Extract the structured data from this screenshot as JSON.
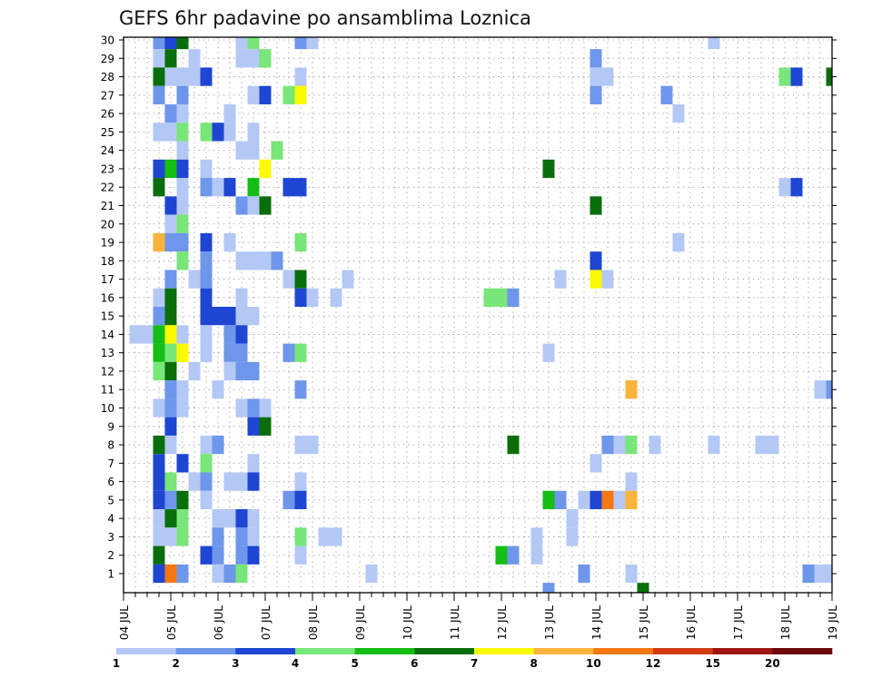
{
  "chart_data": {
    "type": "heatmap",
    "title": "GEFS 6hr padavine po ansamblima Loznica",
    "x_tick_labels": [
      "04 JUL",
      "05 JUL",
      "06 JUL",
      "07 JUL",
      "08 JUL",
      "09 JUL",
      "10 JUL",
      "11 JUL",
      "12 JUL",
      "13 JUL",
      "14 JUL",
      "15 JUL",
      "16 JUL",
      "17 JUL",
      "18 JUL",
      "19 JUL"
    ],
    "y_tick_labels": [
      "1",
      "2",
      "3",
      "4",
      "5",
      "6",
      "7",
      "8",
      "9",
      "10",
      "11",
      "12",
      "13",
      "14",
      "15",
      "16",
      "17",
      "18",
      "19",
      "20",
      "21",
      "22",
      "23",
      "24",
      "25",
      "26",
      "27",
      "28",
      "29",
      "30"
    ],
    "x_range_steps_6h": [
      0,
      60
    ],
    "y_range_members": [
      1,
      30
    ],
    "grid": "dotted",
    "colorbar": {
      "placement": "bottom",
      "tick_labels": [
        "1",
        "2",
        "3",
        "4",
        "5",
        "6",
        "7",
        "8",
        "10",
        "12",
        "15",
        "20"
      ],
      "colors": [
        "#b4c8f5",
        "#6e96eb",
        "#1e46d2",
        "#78e678",
        "#14be14",
        "#0a6e0a",
        "#fafa00",
        "#fab43c",
        "#f57814",
        "#d23c14",
        "#a01414",
        "#6e0a0a"
      ]
    },
    "cells_note_format": "[member, step(6h steps from 04 JUL 00z), class(1..12 per colorbar)]",
    "cells": [
      [
        30,
        3,
        2
      ],
      [
        30,
        4,
        3
      ],
      [
        30,
        5,
        6
      ],
      [
        30,
        10,
        1
      ],
      [
        30,
        11,
        4
      ],
      [
        30,
        15,
        2
      ],
      [
        30,
        16,
        1
      ],
      [
        30,
        50,
        1
      ],
      [
        29,
        3,
        1
      ],
      [
        29,
        4,
        6
      ],
      [
        29,
        6,
        1
      ],
      [
        29,
        10,
        1
      ],
      [
        29,
        11,
        1
      ],
      [
        29,
        12,
        4
      ],
      [
        29,
        40,
        2
      ],
      [
        28,
        3,
        6
      ],
      [
        28,
        4,
        1
      ],
      [
        28,
        5,
        1
      ],
      [
        28,
        6,
        1
      ],
      [
        28,
        7,
        3
      ],
      [
        28,
        15,
        1
      ],
      [
        28,
        40,
        1
      ],
      [
        28,
        41,
        1
      ],
      [
        28,
        56,
        4
      ],
      [
        28,
        57,
        3
      ],
      [
        28,
        60,
        6
      ],
      [
        27,
        3,
        2
      ],
      [
        27,
        5,
        2
      ],
      [
        27,
        11,
        1
      ],
      [
        27,
        12,
        3
      ],
      [
        27,
        14,
        4
      ],
      [
        27,
        15,
        7
      ],
      [
        27,
        40,
        2
      ],
      [
        27,
        46,
        2
      ],
      [
        26,
        4,
        2
      ],
      [
        26,
        5,
        1
      ],
      [
        26,
        9,
        1
      ],
      [
        26,
        47,
        1
      ],
      [
        25,
        3,
        1
      ],
      [
        25,
        4,
        1
      ],
      [
        25,
        5,
        4
      ],
      [
        25,
        7,
        4
      ],
      [
        25,
        8,
        3
      ],
      [
        25,
        9,
        1
      ],
      [
        25,
        11,
        1
      ],
      [
        24,
        5,
        1
      ],
      [
        24,
        10,
        1
      ],
      [
        24,
        11,
        1
      ],
      [
        24,
        13,
        4
      ],
      [
        23,
        3,
        3
      ],
      [
        23,
        4,
        5
      ],
      [
        23,
        5,
        3
      ],
      [
        23,
        7,
        1
      ],
      [
        23,
        12,
        7
      ],
      [
        23,
        36,
        6
      ],
      [
        22,
        3,
        6
      ],
      [
        22,
        5,
        1
      ],
      [
        22,
        7,
        2
      ],
      [
        22,
        8,
        1
      ],
      [
        22,
        9,
        3
      ],
      [
        22,
        11,
        5
      ],
      [
        22,
        14,
        3
      ],
      [
        22,
        15,
        3
      ],
      [
        22,
        56,
        1
      ],
      [
        22,
        57,
        3
      ],
      [
        21,
        4,
        3
      ],
      [
        21,
        5,
        1
      ],
      [
        21,
        10,
        2
      ],
      [
        21,
        11,
        1
      ],
      [
        21,
        12,
        6
      ],
      [
        21,
        40,
        6
      ],
      [
        20,
        4,
        1
      ],
      [
        20,
        5,
        4
      ],
      [
        19,
        3,
        8
      ],
      [
        19,
        4,
        2
      ],
      [
        19,
        5,
        2
      ],
      [
        19,
        7,
        3
      ],
      [
        19,
        9,
        1
      ],
      [
        19,
        15,
        4
      ],
      [
        19,
        47,
        1
      ],
      [
        18,
        5,
        4
      ],
      [
        18,
        7,
        2
      ],
      [
        18,
        10,
        1
      ],
      [
        18,
        11,
        1
      ],
      [
        18,
        12,
        1
      ],
      [
        18,
        13,
        2
      ],
      [
        18,
        40,
        3
      ],
      [
        17,
        4,
        2
      ],
      [
        17,
        6,
        1
      ],
      [
        17,
        7,
        2
      ],
      [
        17,
        14,
        1
      ],
      [
        17,
        15,
        6
      ],
      [
        17,
        19,
        1
      ],
      [
        17,
        37,
        1
      ],
      [
        17,
        40,
        7
      ],
      [
        17,
        41,
        1
      ],
      [
        16,
        3,
        1
      ],
      [
        16,
        4,
        6
      ],
      [
        16,
        7,
        3
      ],
      [
        16,
        10,
        1
      ],
      [
        16,
        15,
        3
      ],
      [
        16,
        16,
        1
      ],
      [
        16,
        18,
        1
      ],
      [
        16,
        31,
        4
      ],
      [
        16,
        32,
        4
      ],
      [
        16,
        33,
        2
      ],
      [
        15,
        3,
        2
      ],
      [
        15,
        4,
        6
      ],
      [
        15,
        7,
        3
      ],
      [
        15,
        8,
        3
      ],
      [
        15,
        9,
        3
      ],
      [
        15,
        10,
        1
      ],
      [
        15,
        11,
        1
      ],
      [
        14,
        1,
        1
      ],
      [
        14,
        2,
        1
      ],
      [
        14,
        3,
        5
      ],
      [
        14,
        4,
        7
      ],
      [
        14,
        5,
        1
      ],
      [
        14,
        7,
        1
      ],
      [
        14,
        9,
        2
      ],
      [
        14,
        10,
        3
      ],
      [
        13,
        3,
        5
      ],
      [
        13,
        4,
        4
      ],
      [
        13,
        5,
        7
      ],
      [
        13,
        7,
        1
      ],
      [
        13,
        9,
        2
      ],
      [
        13,
        10,
        2
      ],
      [
        13,
        14,
        2
      ],
      [
        13,
        15,
        4
      ],
      [
        13,
        36,
        1
      ],
      [
        12,
        3,
        4
      ],
      [
        12,
        4,
        6
      ],
      [
        12,
        6,
        1
      ],
      [
        12,
        9,
        1
      ],
      [
        12,
        10,
        2
      ],
      [
        12,
        11,
        2
      ],
      [
        11,
        4,
        2
      ],
      [
        11,
        5,
        1
      ],
      [
        11,
        8,
        1
      ],
      [
        11,
        15,
        2
      ],
      [
        11,
        43,
        8
      ],
      [
        11,
        59,
        1
      ],
      [
        11,
        60,
        2
      ],
      [
        10,
        3,
        1
      ],
      [
        10,
        4,
        2
      ],
      [
        10,
        5,
        1
      ],
      [
        10,
        10,
        1
      ],
      [
        10,
        11,
        2
      ],
      [
        10,
        12,
        1
      ],
      [
        9,
        4,
        3
      ],
      [
        9,
        11,
        3
      ],
      [
        9,
        12,
        6
      ],
      [
        8,
        3,
        6
      ],
      [
        8,
        4,
        1
      ],
      [
        8,
        7,
        1
      ],
      [
        8,
        8,
        2
      ],
      [
        8,
        15,
        1
      ],
      [
        8,
        16,
        1
      ],
      [
        8,
        33,
        6
      ],
      [
        8,
        41,
        2
      ],
      [
        8,
        42,
        1
      ],
      [
        8,
        43,
        4
      ],
      [
        8,
        45,
        1
      ],
      [
        8,
        50,
        1
      ],
      [
        8,
        54,
        1
      ],
      [
        8,
        55,
        1
      ],
      [
        7,
        3,
        3
      ],
      [
        7,
        5,
        3
      ],
      [
        7,
        7,
        4
      ],
      [
        7,
        11,
        1
      ],
      [
        7,
        40,
        1
      ],
      [
        6,
        3,
        3
      ],
      [
        6,
        4,
        4
      ],
      [
        6,
        6,
        1
      ],
      [
        6,
        7,
        2
      ],
      [
        6,
        9,
        1
      ],
      [
        6,
        10,
        1
      ],
      [
        6,
        11,
        3
      ],
      [
        6,
        15,
        1
      ],
      [
        6,
        43,
        1
      ],
      [
        5,
        3,
        3
      ],
      [
        5,
        4,
        2
      ],
      [
        5,
        5,
        6
      ],
      [
        5,
        7,
        1
      ],
      [
        5,
        14,
        2
      ],
      [
        5,
        15,
        3
      ],
      [
        5,
        36,
        5
      ],
      [
        5,
        37,
        2
      ],
      [
        5,
        39,
        1
      ],
      [
        5,
        40,
        3
      ],
      [
        5,
        41,
        9
      ],
      [
        5,
        42,
        1
      ],
      [
        5,
        43,
        8
      ],
      [
        4,
        3,
        1
      ],
      [
        4,
        4,
        6
      ],
      [
        4,
        5,
        4
      ],
      [
        4,
        8,
        1
      ],
      [
        4,
        9,
        1
      ],
      [
        4,
        10,
        3
      ],
      [
        4,
        11,
        1
      ],
      [
        4,
        38,
        1
      ],
      [
        3,
        3,
        1
      ],
      [
        3,
        4,
        1
      ],
      [
        3,
        5,
        4
      ],
      [
        3,
        8,
        2
      ],
      [
        3,
        10,
        2
      ],
      [
        3,
        11,
        1
      ],
      [
        3,
        15,
        4
      ],
      [
        3,
        17,
        1
      ],
      [
        3,
        18,
        1
      ],
      [
        3,
        35,
        1
      ],
      [
        3,
        38,
        1
      ],
      [
        2,
        3,
        6
      ],
      [
        2,
        7,
        3
      ],
      [
        2,
        8,
        2
      ],
      [
        2,
        10,
        2
      ],
      [
        2,
        11,
        3
      ],
      [
        2,
        15,
        1
      ],
      [
        2,
        32,
        5
      ],
      [
        2,
        33,
        2
      ],
      [
        2,
        35,
        1
      ],
      [
        1,
        3,
        3
      ],
      [
        1,
        4,
        9
      ],
      [
        1,
        5,
        2
      ],
      [
        1,
        8,
        1
      ],
      [
        1,
        9,
        2
      ],
      [
        1,
        10,
        4
      ],
      [
        1,
        21,
        1
      ],
      [
        1,
        39,
        2
      ],
      [
        1,
        43,
        1
      ],
      [
        1,
        58,
        2
      ],
      [
        1,
        59,
        1
      ],
      [
        1,
        60,
        1
      ],
      [
        0,
        36,
        2
      ],
      [
        0,
        44,
        6
      ]
    ]
  }
}
